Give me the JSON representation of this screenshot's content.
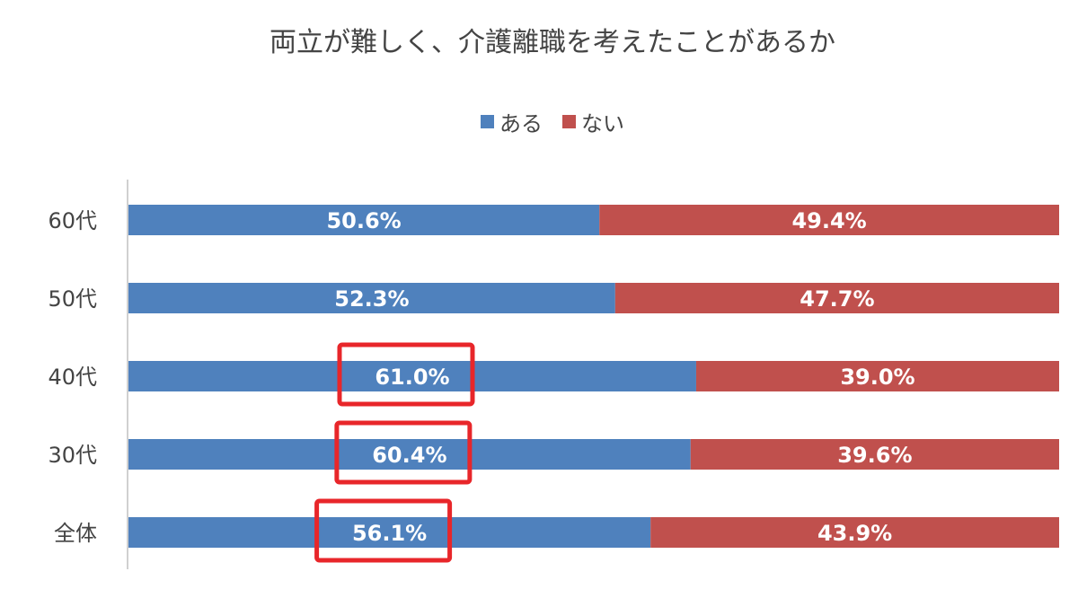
{
  "chart_data": {
    "type": "bar",
    "orientation": "horizontal",
    "stacked": true,
    "title": "両立が難しく、介護離職を考えたことがあるか",
    "categories": [
      "60代",
      "50代",
      "40代",
      "30代",
      "全体"
    ],
    "series": [
      {
        "name": "ある",
        "color": "#4F81BD",
        "values": [
          50.6,
          52.3,
          61.0,
          60.4,
          56.1
        ],
        "labels": [
          "50.6%",
          "52.3%",
          "61.0%",
          "60.4%",
          "56.1%"
        ]
      },
      {
        "name": "ない",
        "color": "#C0504D",
        "values": [
          49.4,
          47.7,
          39.0,
          39.6,
          43.9
        ],
        "labels": [
          "49.4%",
          "47.7%",
          "39.0%",
          "39.6%",
          "43.9%"
        ]
      }
    ],
    "xlim": [
      0,
      100
    ],
    "grid": false,
    "legend_position": "top",
    "highlighted_categories": [
      "40代",
      "30代",
      "全体"
    ],
    "highlight_color": "#E8262A"
  }
}
